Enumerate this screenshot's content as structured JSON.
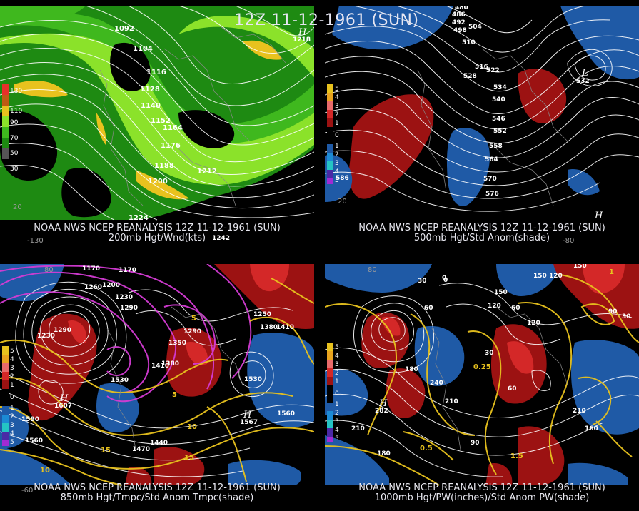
{
  "title": "12Z 11-12-1961 (SUN)",
  "colors": {
    "background": "#000000",
    "wind_light": "#8be22a",
    "wind_mid": "#3fb81e",
    "wind_dark": "#1e8a12",
    "wind_max": "#e8c21e",
    "anom_pos": "#9c1212",
    "anom_pos_strong": "#d42828",
    "anom_neg": "#1f5aa6",
    "contour": "#ffffff",
    "temp_magenta": "#d43cd4",
    "temp_yellow": "#e8c21e"
  },
  "panels": {
    "p200": {
      "caption1": "NOAA NWS NCEP REANALYSIS 12Z 11-12-1961 (SUN)",
      "caption2": "200mb Hgt/Wnd(kts)",
      "legend": [
        "130",
        "110",
        "90",
        "70",
        "50",
        "30"
      ],
      "heights": [
        "1092",
        "1104",
        "1116",
        "1128",
        "1140",
        "1152",
        "1164",
        "1176",
        "1188",
        "1200",
        "1212",
        "1224",
        "1242"
      ],
      "ticks": [
        "20",
        "-130"
      ],
      "high_label": "H",
      "high_value": "1218"
    },
    "p500": {
      "caption1": "NOAA NWS NCEP REANALYSIS 12Z 11-12-1961 (SUN)",
      "caption2": "500mb Hgt/Std Anom(shade)",
      "legend": [
        "5",
        "4",
        "3",
        "2",
        "1",
        "0",
        "1",
        "2",
        "3",
        "4",
        "5"
      ],
      "heights": [
        "480",
        "486",
        "492",
        "498",
        "504",
        "510",
        "516",
        "522",
        "528",
        "534",
        "540",
        "546",
        "552",
        "558",
        "564",
        "570",
        "576"
      ],
      "ticks": [
        "20",
        "-80"
      ],
      "low_label": "L",
      "low_value": "532",
      "high_label": "H",
      "high_value": "586"
    },
    "p850": {
      "caption1": "NOAA NWS NCEP REANALYSIS 12Z 11-12-1961 (SUN)",
      "caption2": "850mb Hgt/Tmpc/Std Anom Tmpc(shade)",
      "legend": [
        "5",
        "4",
        "3",
        "2",
        "1",
        "0",
        "1",
        "2",
        "3",
        "4",
        "5"
      ],
      "heights": [
        "1170",
        "1170",
        "1260",
        "1200",
        "1230",
        "1290",
        "1250",
        "1380",
        "1410",
        "1290",
        "1350",
        "1410",
        "1380",
        "1530",
        "1530",
        "1560",
        "1590",
        "1560",
        "1470",
        "1440",
        "1230",
        "1290"
      ],
      "temps": [
        "5",
        "10",
        "15",
        "10",
        "15",
        "5"
      ],
      "ticks": [
        "80",
        "-60"
      ],
      "high_label": "H",
      "high_value": "1567",
      "high2_value": "1607"
    },
    "p1000": {
      "caption1": "NOAA NWS NCEP REANALYSIS 12Z 11-12-1961 (SUN)",
      "caption2": "1000mb Hgt/PW(inches)/Std Anom PW(shade)",
      "legend": [
        "5",
        "4",
        "3",
        "2",
        "1",
        "0",
        "1",
        "2",
        "3",
        "4",
        "5"
      ],
      "heights": [
        "150",
        "30",
        "0",
        "60",
        "120",
        "150",
        "150",
        "120",
        "60",
        "30",
        "30",
        "90",
        "120",
        "240",
        "210",
        "60",
        "210",
        "180",
        "180",
        "210",
        "90",
        "160",
        "0"
      ],
      "pw": [
        "0.25",
        "0.5",
        "1.5",
        "1"
      ],
      "ticks": [
        "80"
      ],
      "high_label": "H",
      "high_value": "282"
    }
  }
}
